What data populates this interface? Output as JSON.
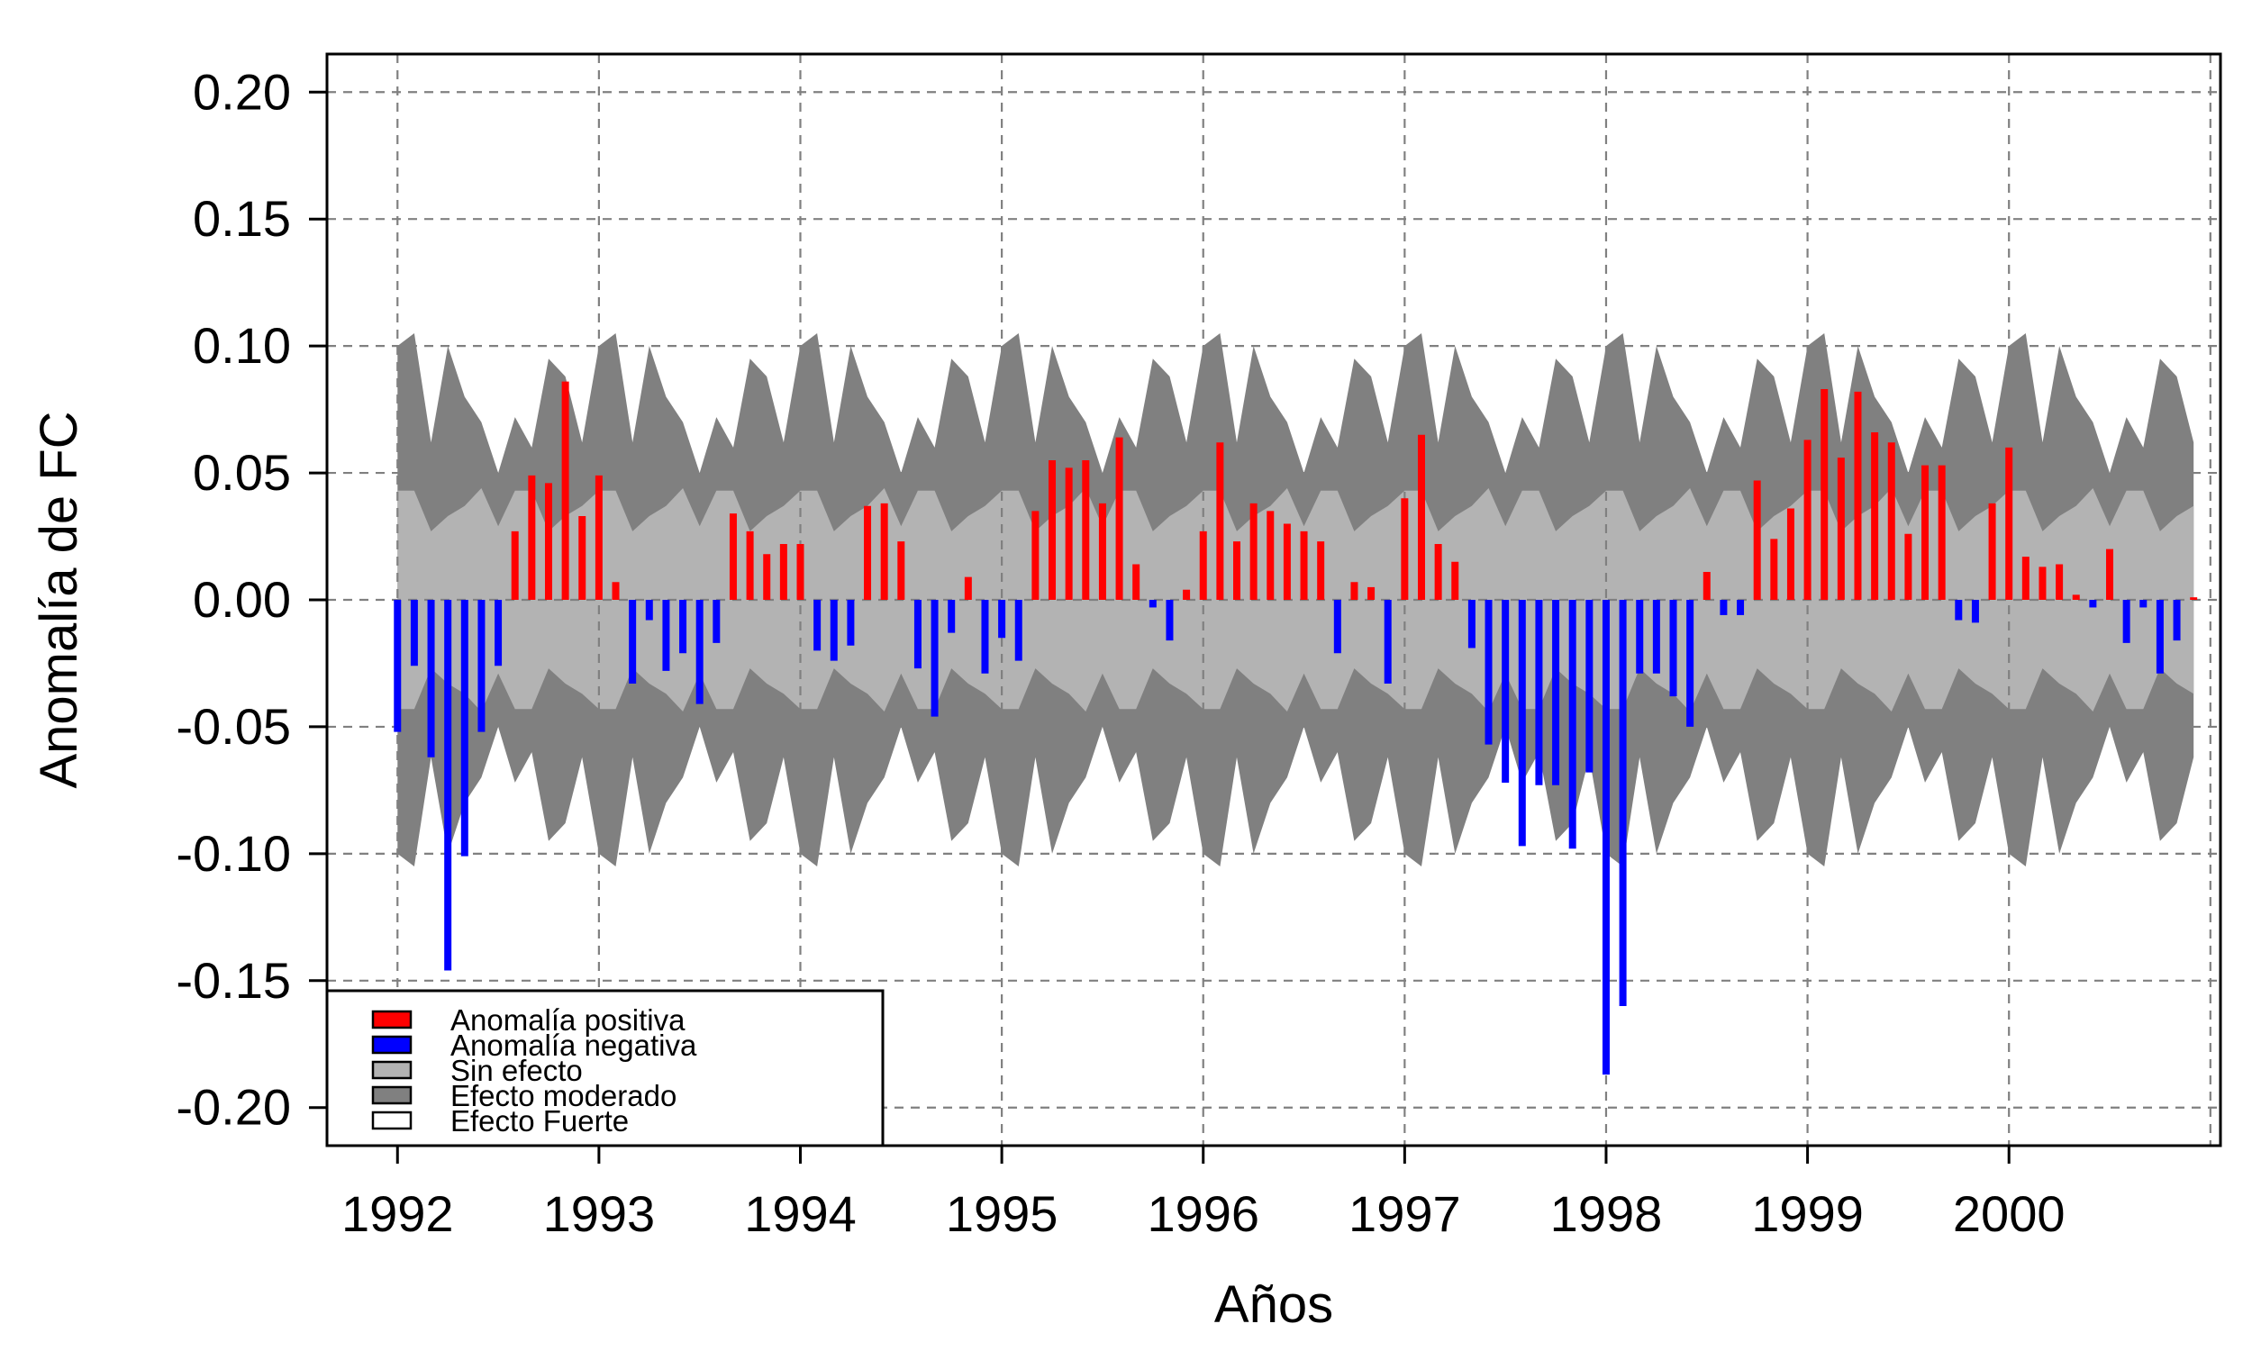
{
  "chart_data": {
    "type": "bar",
    "xlabel": "Años",
    "ylabel": "Anomalía de FC",
    "xlim": [
      1991.65,
      2001.05
    ],
    "ylim": [
      -0.215,
      0.215
    ],
    "x_ticks": [
      1992,
      1993,
      1994,
      1995,
      1996,
      1997,
      1998,
      1999,
      2000
    ],
    "x_tick_labels": [
      "1992",
      "1993",
      "1994",
      "1995",
      "1996",
      "1997",
      "1998",
      "1999",
      "2000"
    ],
    "y_ticks": [
      -0.2,
      -0.15,
      -0.1,
      -0.05,
      0.0,
      0.05,
      0.1,
      0.15,
      0.2
    ],
    "y_tick_labels": [
      "-0.20",
      "-0.15",
      "-0.10",
      "-0.05",
      "0.00",
      "0.05",
      "0.10",
      "0.15",
      "0.20"
    ],
    "grid": true,
    "x_start": 1992,
    "x_step": 0.0833333,
    "values": [
      -0.052,
      -0.026,
      -0.062,
      -0.146,
      -0.101,
      -0.052,
      -0.026,
      0.027,
      0.049,
      0.046,
      0.086,
      0.033,
      0.049,
      0.007,
      -0.033,
      -0.008,
      -0.028,
      -0.021,
      -0.041,
      -0.017,
      0.034,
      0.027,
      0.018,
      0.022,
      0.022,
      -0.02,
      -0.024,
      -0.018,
      0.037,
      0.038,
      0.023,
      -0.027,
      -0.046,
      -0.013,
      0.009,
      -0.029,
      -0.015,
      -0.024,
      0.035,
      0.055,
      0.052,
      0.055,
      0.038,
      0.064,
      0.014,
      -0.003,
      -0.016,
      0.004,
      0.027,
      0.062,
      0.023,
      0.038,
      0.035,
      0.03,
      0.027,
      0.023,
      -0.021,
      0.007,
      0.005,
      -0.033,
      0.04,
      0.065,
      0.022,
      0.015,
      -0.019,
      -0.057,
      -0.072,
      -0.097,
      -0.073,
      -0.073,
      -0.098,
      -0.068,
      -0.187,
      -0.16,
      -0.029,
      -0.029,
      -0.038,
      -0.05,
      0.011,
      -0.006,
      -0.006,
      0.047,
      0.024,
      0.036,
      0.063,
      0.083,
      0.056,
      0.082,
      0.066,
      0.062,
      0.026,
      0.053,
      0.053,
      -0.008,
      -0.009,
      0.038,
      0.06,
      0.017,
      0.013,
      0.014,
      0.002,
      -0.003,
      0.02,
      -0.017,
      -0.003,
      -0.029,
      -0.016,
      0.001
    ],
    "bands": {
      "sin_efecto": [
        0.043,
        0.043,
        0.027,
        0.033,
        0.037,
        0.044,
        0.029,
        0.043,
        0.043,
        0.027,
        0.033,
        0.037
      ],
      "efecto_moderado": [
        0.1,
        0.105,
        0.062,
        0.1,
        0.08,
        0.07,
        0.05,
        0.072,
        0.06,
        0.095,
        0.088,
        0.062
      ]
    },
    "legend": {
      "position": "bottom-left",
      "entries": [
        {
          "label": "Anomalía positiva",
          "color": "#ff0000"
        },
        {
          "label": "Anomalía negativa",
          "color": "#0000ff"
        },
        {
          "label": "Sin efecto",
          "color": "#b3b3b3"
        },
        {
          "label": "Efecto moderado",
          "color": "#808080"
        },
        {
          "label": "Efecto Fuerte",
          "color": "#ffffff"
        }
      ]
    },
    "colors": {
      "positive": "#ff0000",
      "negative": "#0000ff",
      "sin_efecto": "#b3b3b3",
      "efecto_moderado": "#808080",
      "grid": "#808080"
    }
  }
}
